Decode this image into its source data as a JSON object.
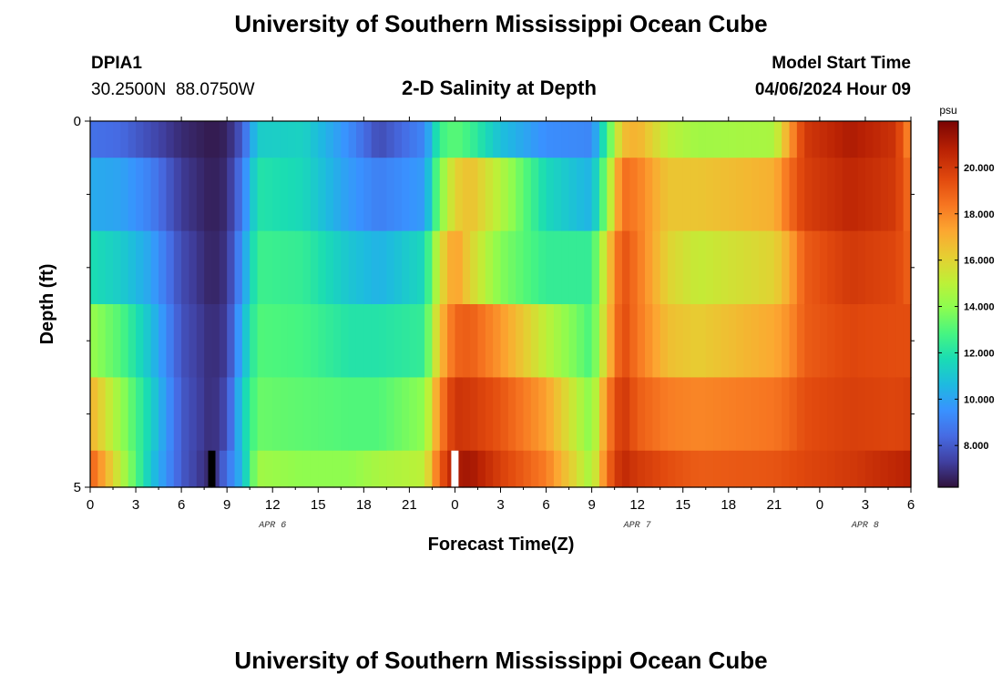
{
  "header": {
    "title": "University of Southern Mississippi Ocean Cube",
    "station_id": "DPIA1",
    "station_coords": "30.2500N  88.0750W",
    "plot_title": "2-D Salinity at Depth",
    "model_start_label": "Model Start Time",
    "model_start_value": "04/06/2024 Hour 09"
  },
  "footer": {
    "title": "University of Southern Mississippi Ocean Cube"
  },
  "chart_data": {
    "type": "heatmap",
    "title": "2-D Salinity at Depth",
    "xlabel": "Forecast Time(Z)",
    "ylabel": "Depth (ft)",
    "x_tick_labels": [
      "0",
      "3",
      "6",
      "9",
      "12",
      "15",
      "18",
      "21",
      "0",
      "3",
      "6",
      "9",
      "12",
      "15",
      "18",
      "21",
      "0",
      "3",
      "6"
    ],
    "y_tick_labels": [
      "0",
      "5"
    ],
    "ylim": [
      0,
      5
    ],
    "date_labels": [
      {
        "label": "APR 6",
        "hour": 12
      },
      {
        "label": "APR 7",
        "hour": 36
      },
      {
        "label": "APR 8",
        "hour": 51
      }
    ],
    "x_hours_start": 0,
    "x_hours_end": 54,
    "colorbar": {
      "unit": "psu",
      "min": 6.2,
      "max": 22.0,
      "tick_labels": [
        "8.000",
        "10.000",
        "12.000",
        "14.000",
        "16.000",
        "18.000",
        "20.000"
      ],
      "tick_values": [
        8,
        10,
        12,
        14,
        16,
        18,
        20
      ]
    },
    "markers": [
      {
        "hour": 8,
        "color": "#000000"
      },
      {
        "hour": 24,
        "color": "#ffffff"
      }
    ],
    "depth_layers": [
      0,
      1,
      2,
      3,
      4,
      5
    ],
    "salinity_keyframes": [
      {
        "hour": 0,
        "values": [
          8.6,
          10.2,
          11.8,
          14.2,
          17.0,
          19.0
        ]
      },
      {
        "hour": 2,
        "values": [
          8.4,
          10.0,
          11.2,
          13.0,
          14.2,
          15.0
        ]
      },
      {
        "hour": 4,
        "values": [
          7.6,
          9.0,
          10.0,
          10.8,
          11.4,
          11.0
        ]
      },
      {
        "hour": 6,
        "values": [
          6.8,
          7.2,
          7.6,
          7.8,
          8.0,
          8.0
        ]
      },
      {
        "hour": 8,
        "values": [
          6.4,
          6.5,
          6.6,
          6.8,
          6.8,
          6.6
        ]
      },
      {
        "hour": 9,
        "values": [
          6.6,
          6.8,
          7.0,
          7.2,
          7.6,
          8.6
        ]
      },
      {
        "hour": 10,
        "values": [
          8.0,
          8.8,
          9.6,
          10.4,
          11.2,
          10.6
        ]
      },
      {
        "hour": 11,
        "values": [
          11.2,
          12.0,
          12.6,
          13.0,
          13.4,
          14.4
        ]
      },
      {
        "hour": 14,
        "values": [
          11.4,
          11.6,
          12.4,
          12.8,
          13.2,
          14.0
        ]
      },
      {
        "hour": 17,
        "values": [
          9.4,
          9.8,
          11.0,
          12.0,
          13.0,
          14.0
        ]
      },
      {
        "hour": 19,
        "values": [
          7.6,
          9.0,
          10.4,
          12.0,
          13.0,
          14.6
        ]
      },
      {
        "hour": 22,
        "values": [
          9.2,
          9.8,
          11.6,
          12.4,
          14.0,
          15.0
        ]
      },
      {
        "hour": 23,
        "values": [
          12.6,
          13.8,
          15.6,
          16.6,
          18.0,
          19.0
        ]
      },
      {
        "hour": 24,
        "values": [
          13.2,
          16.0,
          17.6,
          18.8,
          20.2,
          21.0
        ]
      },
      {
        "hour": 25,
        "values": [
          12.6,
          16.6,
          16.0,
          19.0,
          20.0,
          21.2
        ]
      },
      {
        "hour": 27,
        "values": [
          10.8,
          14.8,
          13.8,
          17.6,
          19.2,
          19.8
        ]
      },
      {
        "hour": 30,
        "values": [
          9.4,
          11.6,
          12.4,
          15.0,
          17.4,
          18.2
        ]
      },
      {
        "hour": 33,
        "values": [
          9.2,
          10.4,
          12.4,
          12.8,
          13.8,
          14.4
        ]
      },
      {
        "hour": 34,
        "values": [
          12.6,
          14.0,
          16.0,
          16.4,
          18.0,
          18.6
        ]
      },
      {
        "hour": 35,
        "values": [
          16.6,
          18.6,
          19.4,
          19.6,
          20.2,
          20.6
        ]
      },
      {
        "hour": 36,
        "values": [
          17.0,
          18.2,
          18.4,
          18.4,
          19.0,
          20.0
        ]
      },
      {
        "hour": 38,
        "values": [
          15.0,
          16.4,
          16.0,
          16.6,
          18.2,
          19.4
        ]
      },
      {
        "hour": 40,
        "values": [
          14.4,
          16.4,
          15.2,
          16.2,
          18.0,
          19.0
        ]
      },
      {
        "hour": 45,
        "values": [
          14.6,
          17.0,
          16.0,
          17.2,
          18.4,
          19.2
        ]
      },
      {
        "hour": 46,
        "values": [
          17.4,
          18.6,
          17.2,
          17.8,
          18.8,
          19.4
        ]
      },
      {
        "hour": 47,
        "values": [
          20.0,
          19.8,
          19.0,
          19.0,
          19.4,
          19.6
        ]
      },
      {
        "hour": 50,
        "values": [
          21.0,
          20.6,
          20.0,
          19.6,
          19.8,
          20.0
        ]
      },
      {
        "hour": 53,
        "values": [
          20.2,
          20.0,
          19.6,
          19.4,
          19.6,
          20.6
        ]
      },
      {
        "hour": 54,
        "values": [
          17.6,
          18.4,
          18.8,
          19.4,
          19.8,
          20.8
        ]
      }
    ]
  }
}
